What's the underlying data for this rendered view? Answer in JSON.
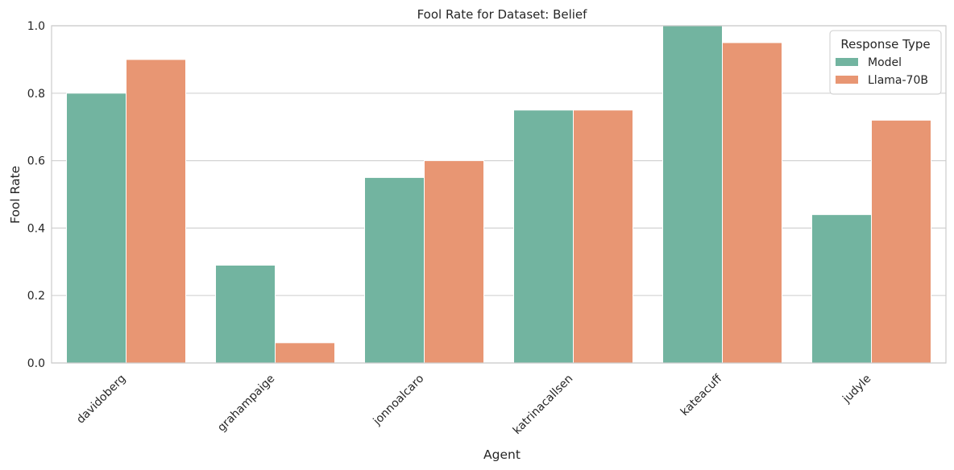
{
  "chart_data": {
    "type": "bar",
    "title": "Fool Rate for Dataset: Belief",
    "xlabel": "Agent",
    "ylabel": "Fool Rate",
    "ylim": [
      0,
      1.0
    ],
    "yticks": [
      "0.0",
      "0.2",
      "0.4",
      "0.6",
      "0.8",
      "1.0"
    ],
    "grid": true,
    "categories": [
      "davidoberg",
      "grahampaige",
      "jonnoalcaro",
      "katrinacallsen",
      "kateacuff",
      "judyle"
    ],
    "series": [
      {
        "name": "Model",
        "color": "#72b4a0",
        "values": [
          0.8,
          0.29,
          0.55,
          0.75,
          1.0,
          0.44
        ]
      },
      {
        "name": "Llama-70B",
        "color": "#e89673",
        "values": [
          0.9,
          0.06,
          0.6,
          0.75,
          0.95,
          0.72
        ]
      }
    ],
    "legend": {
      "title": "Response Type",
      "placement": "top-right"
    }
  }
}
